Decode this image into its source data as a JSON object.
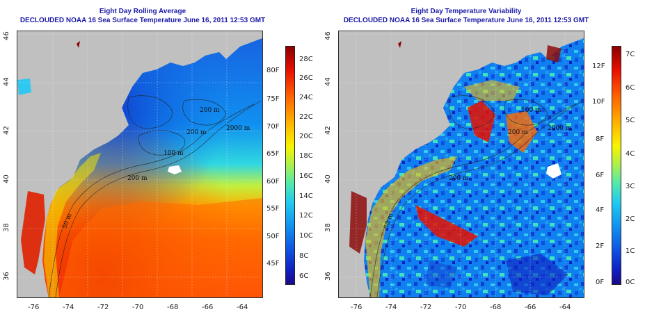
{
  "left_panel": {
    "title_line1": "Eight Day Rolling Average",
    "title_line2": "DECLOUDED NOAA 16 Sea Surface Temperature June 16, 2011 12:53 GMT",
    "colorbar": {
      "celsius_labels": [
        "28C",
        "26C",
        "24C",
        "22C",
        "20C",
        "18C",
        "16C",
        "14C",
        "12C",
        "10C",
        "8C",
        "6C"
      ],
      "fahrenheit_labels": [
        "80F",
        "75F",
        "70F",
        "65F",
        "60F",
        "55F",
        "50F",
        "45F"
      ],
      "colors": [
        "#8b0000",
        "#e81000",
        "#ff6a00",
        "#ffc000",
        "#f8f400",
        "#a8f050",
        "#50e8b0",
        "#20c8f0",
        "#1090f0",
        "#1050e0",
        "#1020c0",
        "#1a0a8a"
      ]
    },
    "contour_labels": [
      "200 m",
      "2000 m",
      "100 m",
      "200 m",
      "200 m",
      "50 m"
    ]
  },
  "right_panel": {
    "title_line1": "Eight Day Temperature Variability",
    "title_line2": "DECLOUDED NOAA 16 Sea Surface Temperature June 16, 2011 12:53 GMT",
    "colorbar": {
      "celsius_labels": [
        "7C",
        "6C",
        "5C",
        "4C",
        "3C",
        "2C",
        "1C",
        "0C"
      ],
      "fahrenheit_labels": [
        "12F",
        "10F",
        "8F",
        "6F",
        "4F",
        "2F",
        "0F"
      ],
      "colors": [
        "#8b0000",
        "#e81000",
        "#ff6a00",
        "#ffc000",
        "#f8f400",
        "#a8f050",
        "#50e8b0",
        "#20c8f0",
        "#1090f0",
        "#1050e0",
        "#1020c0",
        "#1a0a8a"
      ]
    },
    "contour_labels": [
      "100 m",
      "200 m",
      "2000 m",
      "200 m",
      "50 m"
    ]
  },
  "axes": {
    "lon_labels": [
      "-76",
      "-74",
      "-72",
      "-70",
      "-68",
      "-66",
      "-64"
    ],
    "lat_labels": [
      "46",
      "44",
      "42",
      "40",
      "38",
      "36"
    ]
  },
  "colors": {
    "title": "#1a1aa8",
    "land": "#c0c0c0"
  }
}
